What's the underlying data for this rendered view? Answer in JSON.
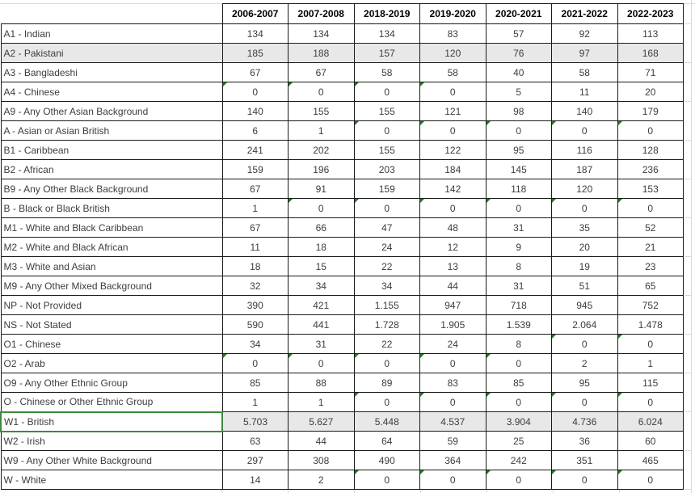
{
  "sheet": {
    "columns": [
      "2006-2007",
      "2007-2008",
      "2018-2019",
      "2019-2020",
      "2020-2021",
      "2021-2022",
      "2022-2023"
    ],
    "rows": [
      {
        "label": "A1 - Indian",
        "values": [
          "134",
          "134",
          "134",
          "83",
          "57",
          "92",
          "113"
        ],
        "highlight": false,
        "selected_label": false
      },
      {
        "label": "A2 - Pakistani",
        "values": [
          "185",
          "188",
          "157",
          "120",
          "76",
          "97",
          "168"
        ],
        "highlight": true,
        "selected_label": false
      },
      {
        "label": "A3 - Bangladeshi",
        "values": [
          "67",
          "67",
          "58",
          "58",
          "40",
          "58",
          "71"
        ],
        "highlight": false,
        "selected_label": false
      },
      {
        "label": "A4 - Chinese",
        "values": [
          "0",
          "0",
          "0",
          "0",
          "5",
          "11",
          "20"
        ],
        "highlight": false,
        "selected_label": false
      },
      {
        "label": "A9 - Any Other Asian Background",
        "values": [
          "140",
          "155",
          "155",
          "121",
          "98",
          "140",
          "179"
        ],
        "highlight": false,
        "selected_label": false
      },
      {
        "label": "A - Asian or Asian British",
        "values": [
          "6",
          "1",
          "0",
          "0",
          "0",
          "0",
          "0"
        ],
        "highlight": false,
        "selected_label": false
      },
      {
        "label": "B1 - Caribbean",
        "values": [
          "241",
          "202",
          "155",
          "122",
          "95",
          "116",
          "128"
        ],
        "highlight": false,
        "selected_label": false
      },
      {
        "label": "B2 - African",
        "values": [
          "159",
          "196",
          "203",
          "184",
          "145",
          "187",
          "236"
        ],
        "highlight": false,
        "selected_label": false
      },
      {
        "label": "B9 - Any Other Black Background",
        "values": [
          "67",
          "91",
          "159",
          "142",
          "118",
          "120",
          "153"
        ],
        "highlight": false,
        "selected_label": false
      },
      {
        "label": "B - Black or Black British",
        "values": [
          "1",
          "0",
          "0",
          "0",
          "0",
          "0",
          "0"
        ],
        "highlight": false,
        "selected_label": false
      },
      {
        "label": "M1 - White and Black Caribbean",
        "values": [
          "67",
          "66",
          "47",
          "48",
          "31",
          "35",
          "52"
        ],
        "highlight": false,
        "selected_label": false
      },
      {
        "label": "M2 - White and Black African",
        "values": [
          "11",
          "18",
          "24",
          "12",
          "9",
          "20",
          "21"
        ],
        "highlight": false,
        "selected_label": false
      },
      {
        "label": "M3 - White and Asian",
        "values": [
          "18",
          "15",
          "22",
          "13",
          "8",
          "19",
          "23"
        ],
        "highlight": false,
        "selected_label": false
      },
      {
        "label": "M9 - Any Other Mixed Background",
        "values": [
          "32",
          "34",
          "34",
          "44",
          "31",
          "51",
          "65"
        ],
        "highlight": false,
        "selected_label": false
      },
      {
        "label": "NP - Not Provided",
        "values": [
          "390",
          "421",
          "1.155",
          "947",
          "718",
          "945",
          "752"
        ],
        "highlight": false,
        "selected_label": false
      },
      {
        "label": "NS - Not Stated",
        "values": [
          "590",
          "441",
          "1.728",
          "1.905",
          "1.539",
          "2.064",
          "1.478"
        ],
        "highlight": false,
        "selected_label": false
      },
      {
        "label": "O1 - Chinese",
        "values": [
          "34",
          "31",
          "22",
          "24",
          "8",
          "0",
          "0"
        ],
        "highlight": false,
        "selected_label": false
      },
      {
        "label": "O2 - Arab",
        "values": [
          "0",
          "0",
          "0",
          "0",
          "0",
          "2",
          "1"
        ],
        "highlight": false,
        "selected_label": false
      },
      {
        "label": "O9 - Any Other Ethnic Group",
        "values": [
          "85",
          "88",
          "89",
          "83",
          "85",
          "95",
          "115"
        ],
        "highlight": false,
        "selected_label": false
      },
      {
        "label": "O - Chinese or Other Ethnic Group",
        "values": [
          "1",
          "1",
          "0",
          "0",
          "0",
          "0",
          "0"
        ],
        "highlight": false,
        "selected_label": false
      },
      {
        "label": "W1 - British",
        "values": [
          "5.703",
          "5.627",
          "5.448",
          "4.537",
          "3.904",
          "4.736",
          "6.024"
        ],
        "highlight": true,
        "selected_label": true
      },
      {
        "label": "W2 - Irish",
        "values": [
          "63",
          "44",
          "64",
          "59",
          "25",
          "36",
          "60"
        ],
        "highlight": false,
        "selected_label": false
      },
      {
        "label": "W9 - Any Other White Background",
        "values": [
          "297",
          "308",
          "490",
          "364",
          "242",
          "351",
          "465"
        ],
        "highlight": false,
        "selected_label": false
      },
      {
        "label": "W - White",
        "values": [
          "14",
          "2",
          "0",
          "0",
          "0",
          "0",
          "0"
        ],
        "highlight": false,
        "selected_label": false
      }
    ],
    "zero_flag_note": "green indicator triangle shown on cells with value 0"
  },
  "colors": {
    "border": "#1a1a1a",
    "gridline": "#d9d9d9",
    "row_highlight": "#e8e8e8",
    "selection_green": "#3c8a3c",
    "flag_green": "#1e7b21",
    "cell_text": "#3d3d3d",
    "header_text": "#000000"
  }
}
